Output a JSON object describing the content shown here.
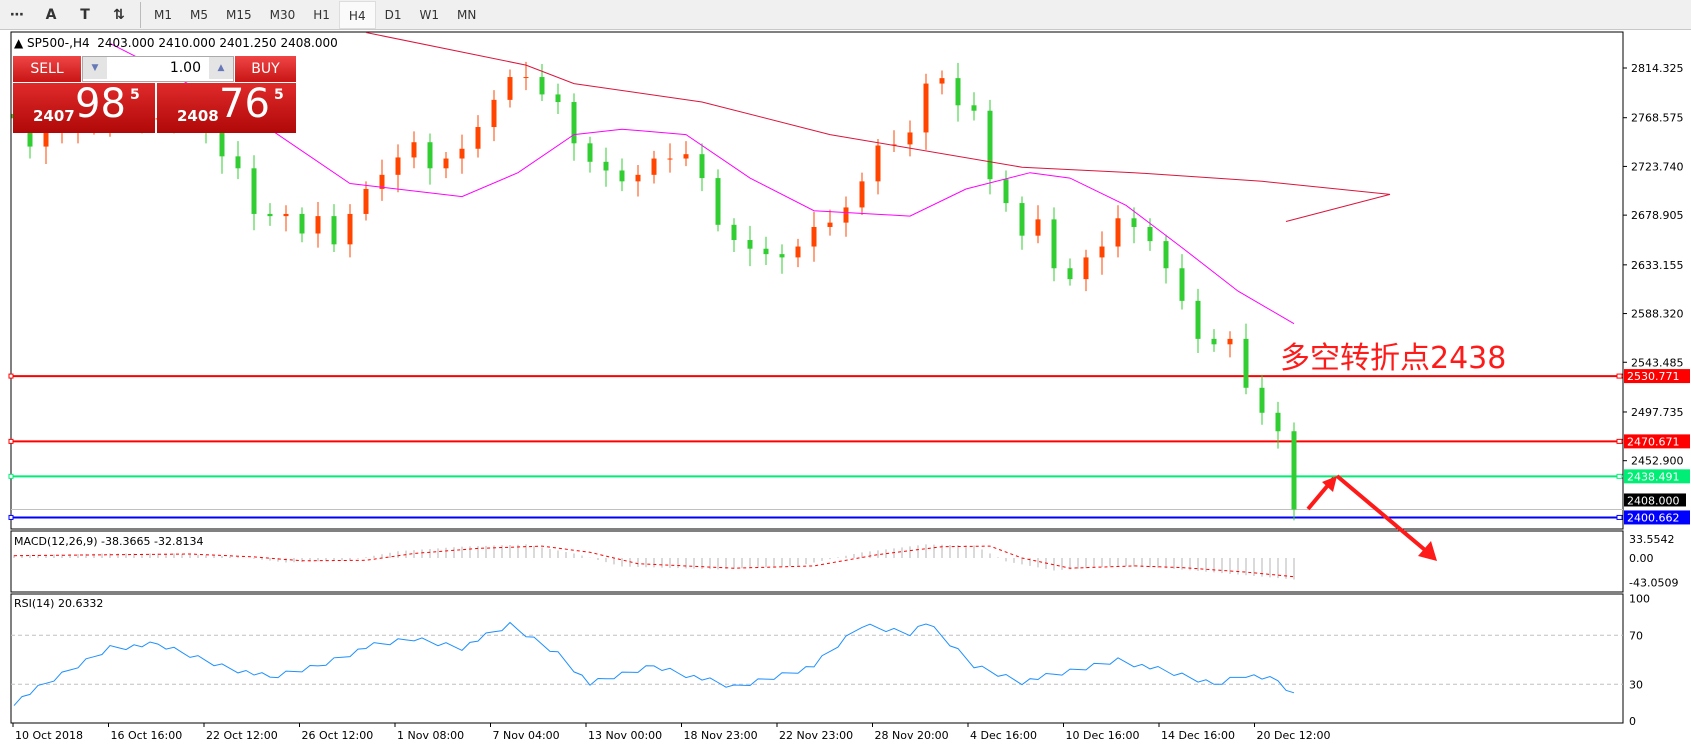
{
  "toolbar": {
    "icons": [
      "period-separator-icon",
      "text-label-icon",
      "text-box-icon",
      "arrow-objects-icon"
    ],
    "icon_glyphs": [
      "⋯",
      "A",
      "T",
      "⇅"
    ],
    "timeframes": [
      "M1",
      "M5",
      "M15",
      "M30",
      "H1",
      "H4",
      "D1",
      "W1",
      "MN"
    ],
    "active": "H4"
  },
  "header": {
    "symbol": "SP500-,H4",
    "ohlc": "2403.000 2410.000 2401.250 2408.000"
  },
  "trade": {
    "sell": "SELL",
    "buy": "BUY",
    "lot": "1.00",
    "bid_main": "2407",
    "bid_big": "98",
    "bid_sup": "5",
    "ask_main": "2408",
    "ask_big": "76",
    "ask_sup": "5"
  },
  "annotation": {
    "text": "多空转折点2438",
    "color": "#ff1a1a"
  },
  "chart_data": {
    "type": "candlestick",
    "colors": {
      "up": "#ff4500",
      "down": "#32cd32",
      "ma_slow": "#dc143c",
      "ma_fast": "#ff00ff"
    },
    "closes": [
      2768,
      2742,
      2755,
      2760,
      2762,
      2765,
      2768,
      2768,
      2767,
      2768,
      2766,
      2762,
      2756,
      2733,
      2722,
      2680,
      2678,
      2680,
      2662,
      2678,
      2652,
      2680,
      2703,
      2716,
      2732,
      2746,
      2722,
      2731,
      2740,
      2760,
      2785,
      2806,
      2806,
      2790,
      2783,
      2745,
      2728,
      2720,
      2710,
      2716,
      2731,
      2731,
      2735,
      2713,
      2670,
      2656,
      2648,
      2643,
      2640,
      2650,
      2668,
      2672,
      2686,
      2710,
      2743,
      2744,
      2755,
      2800,
      2805,
      2780,
      2775,
      2712,
      2690,
      2660,
      2675,
      2630,
      2620,
      2640,
      2650,
      2676,
      2668,
      2655,
      2630,
      2600,
      2565,
      2560,
      2565,
      2520,
      2497,
      2480,
      2408
    ],
    "ma_slow": [
      [
        22,
        2847
      ],
      [
        32,
        2817
      ],
      [
        35,
        2800
      ],
      [
        43,
        2783
      ],
      [
        51,
        2753
      ],
      [
        63,
        2723
      ],
      [
        70,
        2718
      ],
      [
        78,
        2710
      ],
      [
        86,
        2698
      ],
      [
        79.5,
        2673
      ]
    ],
    "ma_fast": [
      [
        6,
        2837
      ],
      [
        10,
        2807
      ],
      [
        16,
        2758
      ],
      [
        21,
        2708
      ],
      [
        28,
        2696
      ],
      [
        31.5,
        2718
      ],
      [
        35,
        2753
      ],
      [
        38,
        2758
      ],
      [
        42,
        2753
      ],
      [
        46,
        2713
      ],
      [
        50,
        2683
      ],
      [
        56,
        2678
      ],
      [
        59.5,
        2703
      ],
      [
        63.5,
        2718
      ],
      [
        66,
        2713
      ],
      [
        69.5,
        2688
      ],
      [
        73,
        2649
      ],
      [
        76.5,
        2609
      ],
      [
        80,
        2579
      ]
    ],
    "price_axis": {
      "ticks": [
        "2814.325",
        "2768.575",
        "2723.740",
        "2678.905",
        "2633.155",
        "2588.320",
        "2543.485",
        "2497.735",
        "2452.900"
      ],
      "range": [
        2396,
        2842
      ]
    },
    "levels": [
      {
        "value": "2530.771",
        "color": "#ff0000"
      },
      {
        "value": "2470.671",
        "color": "#ff0000"
      },
      {
        "value": "2438.491",
        "color": "#00ee76"
      },
      {
        "value": "2400.662",
        "color": "#0000ff"
      }
    ],
    "current_price": "2408.000",
    "macd": {
      "label": "MACD(12,26,9) -38.3665 -32.8134",
      "ticks": [
        "33.5542",
        "0.00",
        "-43.0509"
      ],
      "hist": [
        [
          0,
          5
        ],
        [
          6,
          8
        ],
        [
          10,
          8
        ],
        [
          14,
          2
        ],
        [
          17,
          -8
        ],
        [
          21,
          -4
        ],
        [
          24,
          12
        ],
        [
          28,
          20
        ],
        [
          32,
          24
        ],
        [
          35,
          8
        ],
        [
          38,
          -15
        ],
        [
          44,
          -20
        ],
        [
          49,
          -14
        ],
        [
          53,
          10
        ],
        [
          57,
          24
        ],
        [
          60,
          22
        ],
        [
          62,
          -6
        ],
        [
          65,
          -22
        ],
        [
          69,
          -14
        ],
        [
          72,
          -18
        ],
        [
          76,
          -28
        ],
        [
          80,
          -38
        ]
      ],
      "signal": [
        [
          0,
          4
        ],
        [
          7,
          6
        ],
        [
          11,
          7
        ],
        [
          15,
          2
        ],
        [
          18,
          -5
        ],
        [
          22,
          -4
        ],
        [
          25,
          8
        ],
        [
          29,
          17
        ],
        [
          33,
          21
        ],
        [
          36,
          10
        ],
        [
          39,
          -10
        ],
        [
          45,
          -18
        ],
        [
          50,
          -14
        ],
        [
          54,
          6
        ],
        [
          58,
          20
        ],
        [
          61,
          21
        ],
        [
          63,
          0
        ],
        [
          66,
          -18
        ],
        [
          70,
          -14
        ],
        [
          73,
          -17
        ],
        [
          77,
          -25
        ],
        [
          80,
          -33
        ]
      ]
    },
    "rsi": {
      "label": "RSI(14) 20.6332",
      "ticks": [
        "100",
        "70",
        "30",
        "0"
      ],
      "levels": [
        70,
        30
      ],
      "values": [
        [
          0,
          15
        ],
        [
          2,
          30
        ],
        [
          6,
          60
        ],
        [
          9,
          62
        ],
        [
          13,
          45
        ],
        [
          16,
          35
        ],
        [
          19,
          45
        ],
        [
          22,
          60
        ],
        [
          25,
          67
        ],
        [
          28,
          60
        ],
        [
          31,
          78
        ],
        [
          34,
          55
        ],
        [
          36,
          30
        ],
        [
          40,
          45
        ],
        [
          45,
          27
        ],
        [
          50,
          45
        ],
        [
          53,
          78
        ],
        [
          56,
          72
        ],
        [
          57,
          80
        ],
        [
          60,
          45
        ],
        [
          63,
          32
        ],
        [
          66,
          40
        ],
        [
          69,
          50
        ],
        [
          72,
          40
        ],
        [
          75,
          30
        ],
        [
          77,
          38
        ],
        [
          79,
          32
        ],
        [
          80,
          20.6
        ]
      ]
    },
    "x_axis": {
      "ticks": [
        "10 Oct 2018",
        "16 Oct 16:00",
        "22 Oct 12:00",
        "26 Oct 12:00",
        "1 Nov 08:00",
        "7 Nov 04:00",
        "13 Nov 00:00",
        "18 Nov 23:00",
        "22 Nov 23:00",
        "28 Nov 20:00",
        "4 Dec 16:00",
        "10 Dec 16:00",
        "14 Dec 16:00",
        "20 Dec 12:00"
      ]
    }
  }
}
